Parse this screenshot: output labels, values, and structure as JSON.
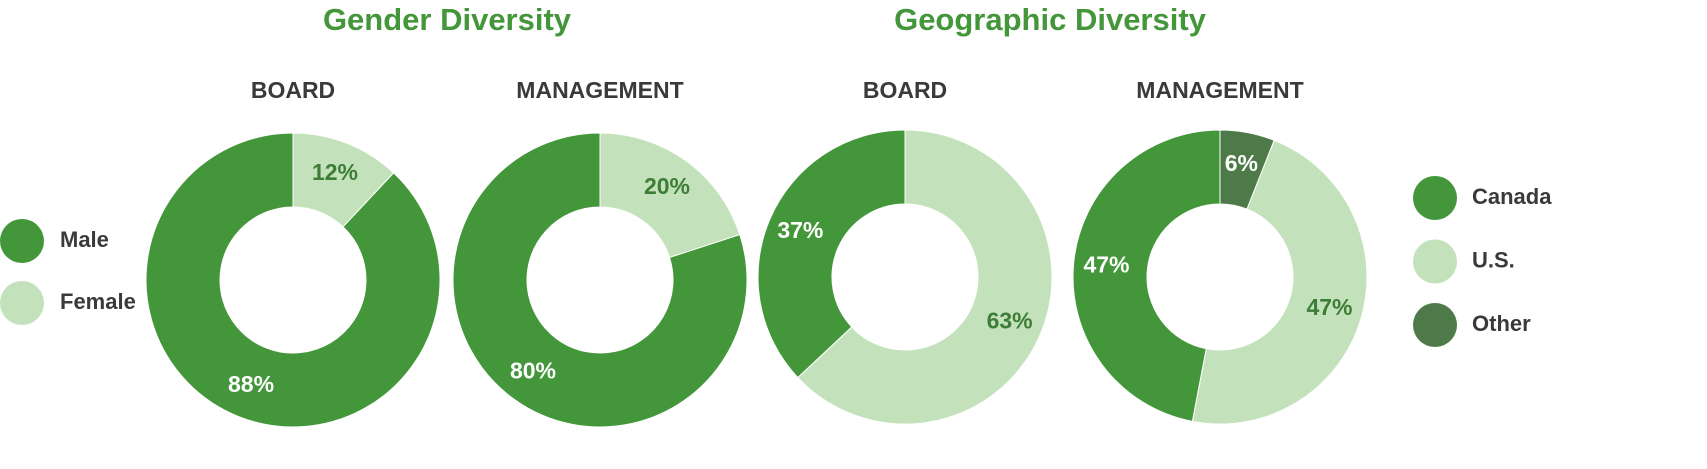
{
  "headings": [
    "Gender Diversity",
    "Geographic Diversity"
  ],
  "chart_data": [
    {
      "type": "donut",
      "title": "BOARD",
      "categories": [
        "Male",
        "Female"
      ],
      "values": [
        88,
        12
      ],
      "value_labels": [
        "88%",
        "12%"
      ],
      "colors": [
        "#43963a",
        "#c3e2bb"
      ],
      "legend": "left"
    },
    {
      "type": "donut",
      "title": "MANAGEMENT",
      "categories": [
        "Male",
        "Female"
      ],
      "values": [
        80,
        20
      ],
      "value_labels": [
        "80%",
        "20%"
      ],
      "colors": [
        "#43963a",
        "#c3e2bb"
      ]
    },
    {
      "type": "donut",
      "title": "BOARD",
      "categories": [
        "Canada",
        "U.S."
      ],
      "values": [
        37,
        63
      ],
      "value_labels": [
        "37%",
        "63%"
      ],
      "colors": [
        "#43963a",
        "#c3e2bb"
      ]
    },
    {
      "type": "donut",
      "title": "MANAGEMENT",
      "categories": [
        "Canada",
        "U.S.",
        "Other"
      ],
      "values": [
        47,
        47,
        6
      ],
      "value_labels": [
        "47%",
        "47%",
        "6%"
      ],
      "colors": [
        "#43963a",
        "#c3e2bb",
        "#4d7a48"
      ],
      "legend": "right"
    }
  ]
}
